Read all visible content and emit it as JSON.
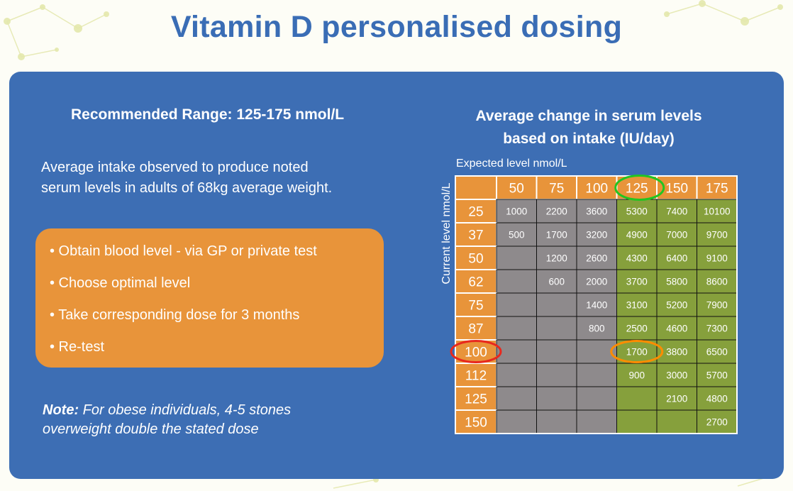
{
  "title": "Vitamin D personalised dosing",
  "left": {
    "heading": "Recommended Range: 125-175 nmol/L",
    "intro_line1": "Average intake observed to produce noted",
    "intro_line2": "serum levels in adults of 68kg average weight.",
    "steps": [
      "• Obtain blood level - via GP or private test",
      "• Choose optimal level",
      "• Take corresponding dose for 3 months",
      "• Re-test"
    ],
    "note_label": "Note:",
    "note_line1": " For obese individuals, 4-5 stones",
    "note_line2": "overweight double the stated dose"
  },
  "right": {
    "heading_line1": "Average change in serum levels",
    "heading_line2": "based on intake (IU/day)",
    "expected_label": "Expected level nmol/L",
    "current_label": "Current level nmol/L"
  },
  "colors": {
    "orange": "#e8943a",
    "grey": "#8e8a8c",
    "green": "#86a03c",
    "blue": "#3d6eb4",
    "highlight_green": "#22c522",
    "highlight_red": "#e8281e",
    "highlight_orange": "#ff8c00"
  },
  "chart_data": {
    "type": "table",
    "column_header": "Expected level nmol/L",
    "row_header": "Current level nmol/L",
    "columns": [
      "50",
      "75",
      "100",
      "125",
      "150",
      "175"
    ],
    "rows": [
      "25",
      "37",
      "50",
      "62",
      "75",
      "87",
      "100",
      "112",
      "125",
      "150"
    ],
    "cells": [
      [
        "1000",
        "2200",
        "3600",
        "5300",
        "7400",
        "10100"
      ],
      [
        "500",
        "1700",
        "3200",
        "4900",
        "7000",
        "9700"
      ],
      [
        "",
        "1200",
        "2600",
        "4300",
        "6400",
        "9100"
      ],
      [
        "",
        "600",
        "2000",
        "3700",
        "5800",
        "8600"
      ],
      [
        "",
        "",
        "1400",
        "3100",
        "5200",
        "7900"
      ],
      [
        "",
        "",
        "800",
        "2500",
        "4600",
        "7300"
      ],
      [
        "",
        "",
        "",
        "1700",
        "3800",
        "6500"
      ],
      [
        "",
        "",
        "",
        "900",
        "3000",
        "5700"
      ],
      [
        "",
        "",
        "",
        "",
        "2100",
        "4800"
      ],
      [
        "",
        "",
        "",
        "",
        "",
        "2700"
      ]
    ],
    "green_column_start": "125",
    "highlights": {
      "column": "125",
      "row": "100",
      "cell_row": "100",
      "cell_column": "125"
    }
  }
}
